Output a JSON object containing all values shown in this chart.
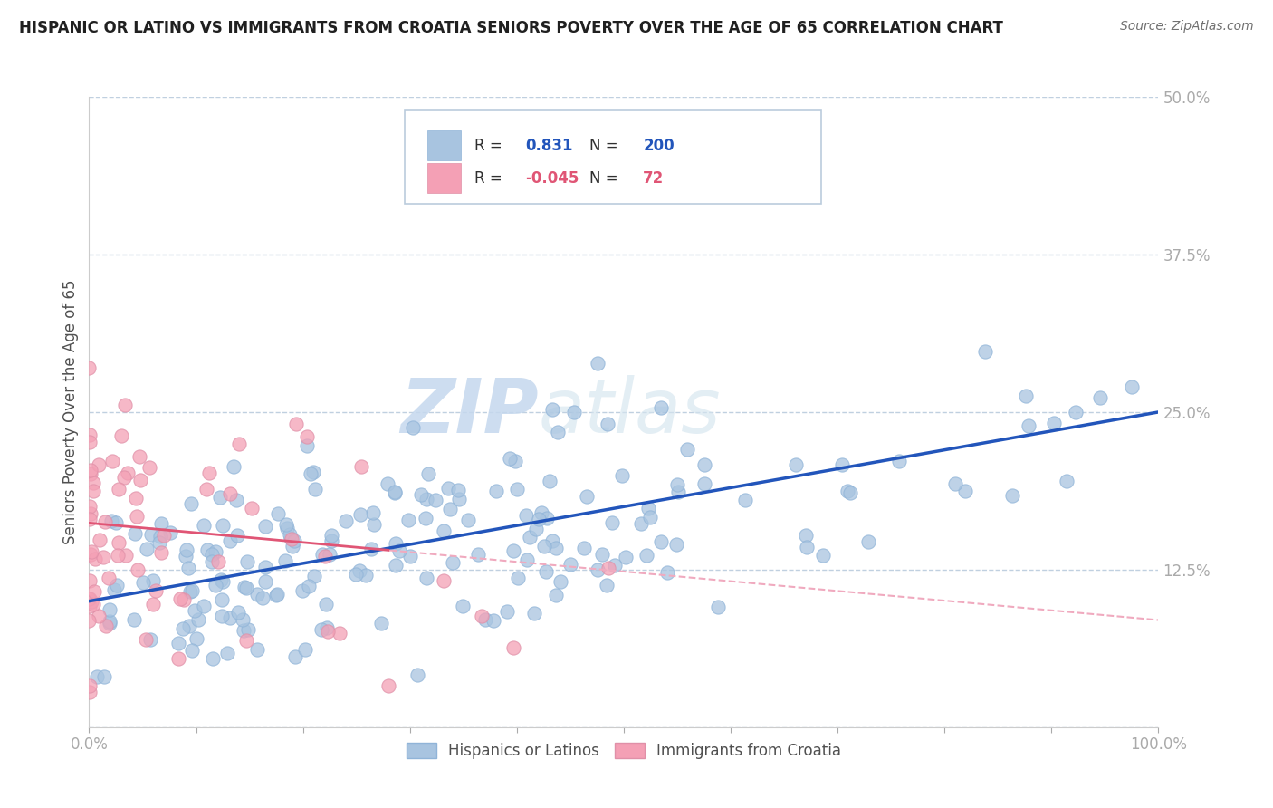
{
  "title": "HISPANIC OR LATINO VS IMMIGRANTS FROM CROATIA SENIORS POVERTY OVER THE AGE OF 65 CORRELATION CHART",
  "source": "Source: ZipAtlas.com",
  "ylabel": "Seniors Poverty Over the Age of 65",
  "r_blue": 0.831,
  "n_blue": 200,
  "r_pink": -0.045,
  "n_pink": 72,
  "blue_color": "#a8c4e0",
  "pink_color": "#f4a0b5",
  "blue_line_color": "#2255bb",
  "pink_line_color": "#e05575",
  "pink_line_dashed_color": "#f0aabf",
  "watermark_zip": "ZIP",
  "watermark_atlas": "atlas",
  "xlim": [
    0,
    1
  ],
  "ylim": [
    0,
    0.5
  ],
  "yticks": [
    0,
    0.125,
    0.25,
    0.375,
    0.5
  ],
  "ytick_labels": [
    "",
    "12.5%",
    "25.0%",
    "37.5%",
    "50.0%"
  ],
  "grid_color": "#c0d0e0",
  "bg_color": "#ffffff",
  "title_color": "#202020",
  "axis_color": "#4488cc",
  "legend_label_blue": "Hispanics or Latinos",
  "legend_label_pink": "Immigrants from Croatia",
  "blue_trend_start": 0.1,
  "blue_trend_end": 0.25,
  "pink_trend_start": 0.162,
  "pink_trend_end": 0.085
}
